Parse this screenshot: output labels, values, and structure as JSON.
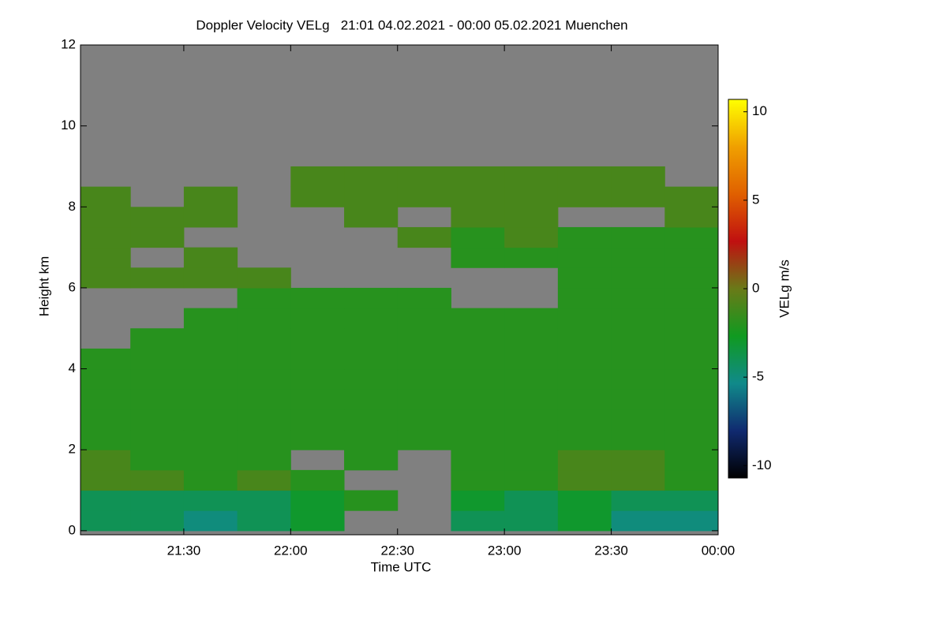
{
  "chart_data": {
    "type": "heatmap",
    "title": "Doppler Velocity VELg   21:01 04.02.2021 - 00:00 05.02.2021 Muenchen",
    "xlabel": "Time UTC",
    "ylabel": "Height km",
    "colorbar_label": "VELg m/s",
    "xlim": [
      21.0167,
      24
    ],
    "xticks": [
      {
        "value": 21.5,
        "label": "21:30"
      },
      {
        "value": 22,
        "label": "22:00"
      },
      {
        "value": 22.5,
        "label": "22:30"
      },
      {
        "value": 23,
        "label": "23:00"
      },
      {
        "value": 23.5,
        "label": "23:30"
      },
      {
        "value": 24,
        "label": "00:00"
      }
    ],
    "ylim": [
      -0.1,
      12
    ],
    "yticks": [
      0,
      2,
      4,
      6,
      8,
      10,
      12
    ],
    "zlim": [
      -10.7,
      10.7
    ],
    "zticks": [
      -10,
      -5,
      0,
      5,
      10
    ],
    "colormap": [
      "#000000",
      "#102a70",
      "#108a8a",
      "#109a20",
      "#6a7a18",
      "#c01010",
      "#e06000",
      "#f0a000",
      "#ffff00"
    ],
    "missing_color": "#808080",
    "xbins": [
      21,
      21.25,
      21.5,
      21.75,
      22,
      22.25,
      22.5,
      22.75,
      23,
      23.25,
      23.5,
      23.75,
      24
    ],
    "ybins": [
      0,
      0.5,
      1,
      1.5,
      2,
      2.5,
      3,
      3.5,
      4,
      4.5,
      5,
      5.5,
      6,
      6.5,
      7,
      7.5,
      8,
      8.5,
      9,
      9.5,
      10,
      10.5,
      11,
      11.5,
      12
    ],
    "values": [
      [
        -4,
        -4,
        -5,
        -4,
        -3,
        null,
        null,
        -4,
        -4,
        -3,
        -5,
        -5
      ],
      [
        -4,
        -4,
        -4,
        -4,
        -3,
        -2,
        null,
        -3,
        -4,
        -3,
        -4,
        -4
      ],
      [
        -1,
        -1,
        -2,
        -1,
        -2,
        null,
        null,
        -2,
        -2,
        -1,
        -1,
        -2
      ],
      [
        -1,
        -2,
        -2,
        -2,
        null,
        -2,
        null,
        -2,
        -2,
        -1,
        -1,
        -2
      ],
      [
        -2,
        -2,
        -2,
        -2,
        -2,
        -2,
        -2,
        -2,
        -2,
        -2,
        -2,
        -2
      ],
      [
        -2,
        -2,
        -2,
        -2,
        -2,
        -2,
        -2,
        -2,
        -2,
        -2,
        -2,
        -2
      ],
      [
        -2,
        -2,
        -2,
        -2,
        -2,
        -2,
        -2,
        -2,
        -2,
        -2,
        -2,
        -2
      ],
      [
        -2,
        -2,
        -2,
        -2,
        -2,
        -2,
        -2,
        -2,
        -2,
        -2,
        -2,
        -2
      ],
      [
        -2,
        -2,
        -2,
        -2,
        -2,
        -2,
        -2,
        -2,
        -2,
        -2,
        -2,
        -2
      ],
      [
        null,
        -2,
        -2,
        -2,
        -2,
        -2,
        -2,
        -2,
        -2,
        -2,
        -2,
        -2
      ],
      [
        null,
        null,
        -2,
        -2,
        -2,
        -2,
        -2,
        -2,
        -2,
        -2,
        -2,
        -2
      ],
      [
        null,
        null,
        null,
        -2,
        -2,
        -2,
        -2,
        null,
        null,
        -2,
        -2,
        -2
      ],
      [
        -1,
        -1,
        -1,
        -1,
        null,
        null,
        null,
        null,
        null,
        -2,
        -2,
        -2
      ],
      [
        -1,
        null,
        -1,
        null,
        null,
        null,
        null,
        -2,
        -2,
        -2,
        -2,
        -2
      ],
      [
        -1,
        -1,
        null,
        null,
        null,
        null,
        -1,
        -2,
        -1,
        -2,
        -2,
        -2
      ],
      [
        -1,
        -1,
        -1,
        null,
        null,
        -1,
        null,
        -1,
        -1,
        null,
        null,
        -1
      ],
      [
        -1,
        null,
        -1,
        null,
        -1,
        -1,
        -1,
        -1,
        -1,
        -1,
        -1,
        -1
      ],
      [
        null,
        null,
        null,
        null,
        -1,
        -1,
        -1,
        -1,
        -1,
        -1,
        -1,
        null
      ],
      [
        null,
        null,
        null,
        null,
        null,
        null,
        null,
        null,
        null,
        null,
        null,
        null
      ],
      [
        null,
        null,
        null,
        null,
        null,
        null,
        null,
        null,
        null,
        null,
        null,
        null
      ],
      [
        null,
        null,
        null,
        null,
        null,
        null,
        null,
        null,
        null,
        null,
        null,
        null
      ],
      [
        null,
        null,
        null,
        null,
        null,
        null,
        null,
        null,
        null,
        null,
        null,
        null
      ],
      [
        null,
        null,
        null,
        null,
        null,
        null,
        null,
        null,
        null,
        null,
        null,
        null
      ],
      [
        null,
        null,
        null,
        null,
        null,
        null,
        null,
        null,
        null,
        null,
        null,
        null
      ]
    ]
  }
}
